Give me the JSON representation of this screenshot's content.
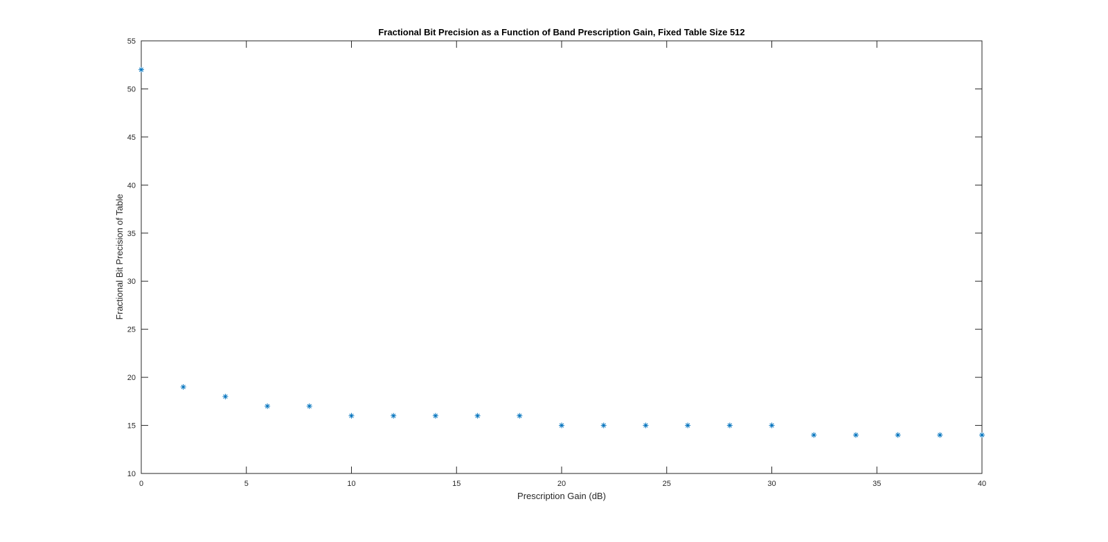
{
  "chart_data": {
    "type": "scatter",
    "title": "Fractional Bit Precision as a Function of Band Prescription Gain, Fixed Table Size 512",
    "xlabel": "Prescription Gain (dB)",
    "ylabel": "Fractional Bit Precision of Table",
    "xlim": [
      0,
      40
    ],
    "ylim": [
      10,
      55
    ],
    "xticks": [
      "0",
      "5",
      "10",
      "15",
      "20",
      "25",
      "30",
      "35",
      "40"
    ],
    "yticks": [
      "10",
      "15",
      "20",
      "25",
      "30",
      "35",
      "40",
      "45",
      "50",
      "55"
    ],
    "grid": false,
    "marker": "asterisk",
    "marker_color": "#0072BD",
    "x": [
      0,
      2,
      4,
      6,
      8,
      10,
      12,
      14,
      16,
      18,
      20,
      22,
      24,
      26,
      28,
      30,
      32,
      34,
      36,
      38,
      40
    ],
    "y": [
      52,
      19,
      18,
      17,
      17,
      16,
      16,
      16,
      16,
      16,
      15,
      15,
      15,
      15,
      15,
      15,
      14,
      14,
      14,
      14,
      14
    ]
  }
}
